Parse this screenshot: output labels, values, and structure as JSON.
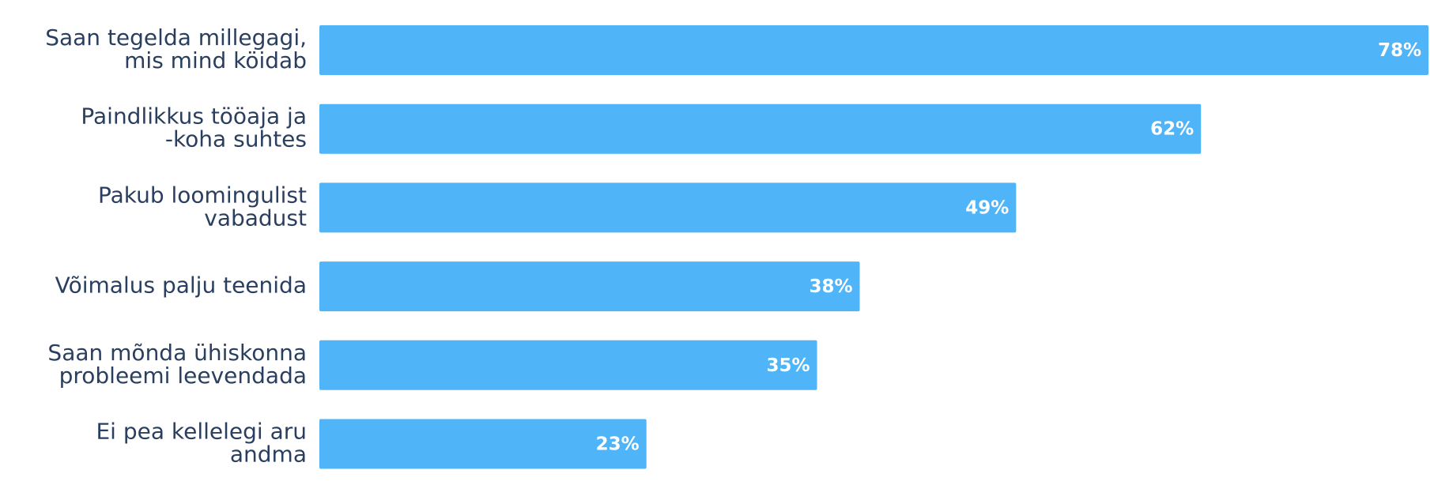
{
  "chart_data": {
    "type": "hbar",
    "categories": [
      [
        "Saan tegelda millegagi,",
        "mis mind köidab"
      ],
      [
        "Paindlikkus tööaja ja",
        "-koha suhtes"
      ],
      [
        "Pakub loomingulist",
        "vabadust"
      ],
      [
        "Võimalus palju teenida"
      ],
      [
        "Saan mõnda ühiskonna",
        "probleemi leevendada"
      ],
      [
        "Ei pea kellelegi aru",
        "andma"
      ]
    ],
    "values": [
      78,
      62,
      49,
      38,
      35,
      23
    ],
    "value_labels": [
      "78%",
      "62%",
      "49%",
      "38%",
      "35%",
      "23%"
    ],
    "color": "#4fb5f8",
    "xlim": [
      0,
      78
    ]
  }
}
